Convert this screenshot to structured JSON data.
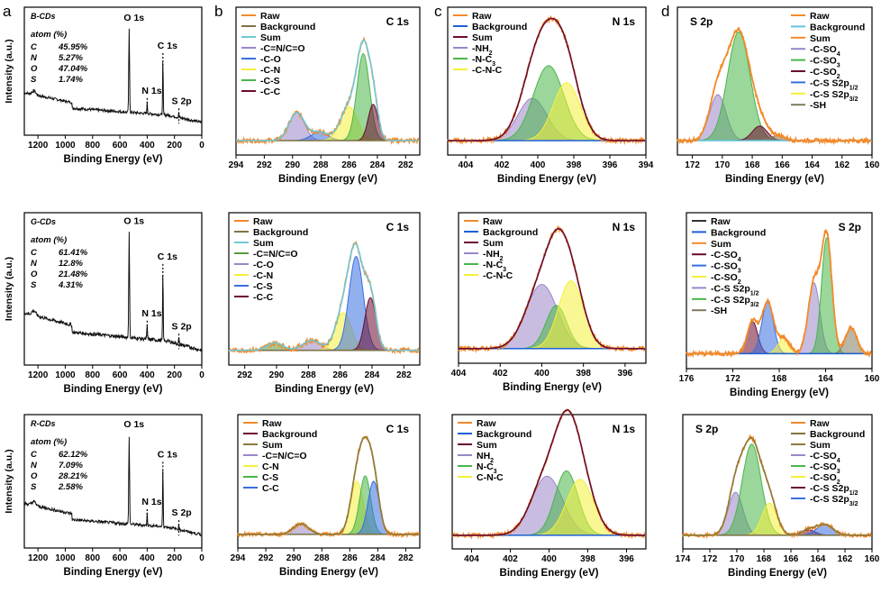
{
  "figure": {
    "row_labels": [
      "a",
      "b",
      "c",
      "d"
    ]
  },
  "colors": {
    "raw": "#f28a2c",
    "background_brown": "#7f7343",
    "background_blue": "#1f5fd6",
    "background_cyan": "#61c3d9",
    "sum_teal": "#6fc8d6",
    "sum_maroon": "#6b0b2e",
    "sum_orange": "#f28a2c",
    "sum_olive": "#8a7b3a",
    "purple": "#9a86c9",
    "blue": "#3a6fe0",
    "yellow": "#f4f03a",
    "green": "#49b549",
    "maroon": "#6b0b2e",
    "dgreen": "#5a9a3a",
    "grey": "#7f7b5e"
  },
  "chart_data": [
    {
      "id": "survey_B",
      "type": "line",
      "title": "B-CDs",
      "xlabel": "Binding Energy (eV)",
      "ylabel": "Intensity (a.u.)",
      "xlim": [
        1300,
        0
      ],
      "xticks": [
        1200,
        1000,
        800,
        600,
        400,
        200,
        0
      ],
      "composition_title": "atom (%)",
      "composition": [
        {
          "el": "C",
          "val": "45.95%"
        },
        {
          "el": "N",
          "val": "5.27%"
        },
        {
          "el": "O",
          "val": "47.04%"
        },
        {
          "el": "S",
          "val": "1.74%"
        }
      ],
      "peak_labels": [
        {
          "text": "O 1s",
          "x": 532
        },
        {
          "text": "N 1s",
          "x": 400
        },
        {
          "text": "C 1s",
          "x": 285
        },
        {
          "text": "S 2p",
          "x": 168
        }
      ]
    },
    {
      "id": "C1s_B",
      "type": "line",
      "title": "C 1s",
      "xlabel": "Binding Energy (eV)",
      "xlim": [
        294,
        281
      ],
      "xticks": [
        294,
        292,
        290,
        288,
        286,
        284,
        282
      ],
      "legend": [
        "Raw",
        "Background",
        "Sum",
        "-C=N/C=O",
        "-C-O",
        "-C-N",
        "-C-S",
        "-C-C"
      ]
    },
    {
      "id": "N1s_B",
      "type": "line",
      "title": "N 1s",
      "xlabel": "Binding Energy (eV)",
      "xlim": [
        405,
        394
      ],
      "xticks": [
        404,
        402,
        400,
        398,
        396,
        394
      ],
      "legend": [
        "Raw",
        "Background",
        "Sum",
        "-NH2",
        "-N-C3",
        "-C-N-C"
      ]
    },
    {
      "id": "S2p_B",
      "type": "line",
      "title": "S 2p",
      "xlabel": "Binding Energy (eV)",
      "xlim": [
        173,
        160
      ],
      "xticks": [
        172,
        170,
        168,
        166,
        164,
        162,
        160
      ],
      "legend": [
        "Raw",
        "Background",
        "Sum",
        "-C-SO4",
        "-C-SO3",
        "-C-SO2",
        "-C-S S2p1/2",
        "-C-S S2p3/2",
        "-SH"
      ]
    },
    {
      "id": "survey_G",
      "type": "line",
      "title": "G-CDs",
      "xlabel": "Binding Energy (eV)",
      "ylabel": "Intensity (a.u.)",
      "xlim": [
        1300,
        0
      ],
      "xticks": [
        1200,
        1000,
        800,
        600,
        400,
        200,
        0
      ],
      "composition_title": "atom (%)",
      "composition": [
        {
          "el": "C",
          "val": "61.41%"
        },
        {
          "el": "N",
          "val": "12.8%"
        },
        {
          "el": "O",
          "val": "21.48%"
        },
        {
          "el": "S",
          "val": "4.31%"
        }
      ],
      "peak_labels": [
        {
          "text": "O 1s",
          "x": 532
        },
        {
          "text": "N 1s",
          "x": 400
        },
        {
          "text": "C 1s",
          "x": 285
        },
        {
          "text": "S 2p",
          "x": 168
        }
      ]
    },
    {
      "id": "C1s_G",
      "type": "line",
      "title": "C 1s",
      "xlabel": "Binding Energy (eV)",
      "xlim": [
        293,
        281
      ],
      "xticks": [
        292,
        290,
        288,
        286,
        284,
        282
      ],
      "legend": [
        "Raw",
        "Background",
        "Sum",
        "-C=N/C=O",
        "-C-O",
        "-C-N",
        "-C-S",
        "-C-C"
      ]
    },
    {
      "id": "N1s_G",
      "type": "line",
      "title": "N 1s",
      "xlabel": "Binding Energy (eV)",
      "xlim": [
        404,
        395
      ],
      "xticks": [
        404,
        402,
        400,
        398,
        396
      ],
      "legend": [
        "Raw",
        "Background",
        "Sum",
        "-NH2",
        "-N-C3",
        "-C-N-C"
      ]
    },
    {
      "id": "S2p_G",
      "type": "line",
      "title": "S 2p",
      "xlabel": "Binding Energy (eV)",
      "xlim": [
        176,
        160
      ],
      "xticks": [
        176,
        172,
        168,
        164,
        160
      ],
      "legend": [
        "Raw",
        "Background",
        "Sum",
        "-C-SO4",
        "-C-SO3",
        "-C-SO2",
        "-C-S S2p1/2",
        "-C-S S2p3/2",
        "-SH"
      ]
    },
    {
      "id": "survey_R",
      "type": "line",
      "title": "R-CDs",
      "xlabel": "Binding Energy (eV)",
      "ylabel": "Intensity (a.u.)",
      "xlim": [
        1300,
        0
      ],
      "xticks": [
        1200,
        1000,
        800,
        600,
        400,
        200,
        0
      ],
      "composition_title": "atom (%)",
      "composition": [
        {
          "el": "C",
          "val": "62.12%"
        },
        {
          "el": "N",
          "val": "7.09%"
        },
        {
          "el": "O",
          "val": "28.21%"
        },
        {
          "el": "S",
          "val": "2.58%"
        }
      ],
      "peak_labels": [
        {
          "text": "O 1s",
          "x": 532
        },
        {
          "text": "N 1s",
          "x": 400
        },
        {
          "text": "C 1s",
          "x": 285
        },
        {
          "text": "S 2p",
          "x": 168
        }
      ]
    },
    {
      "id": "C1s_R",
      "type": "line",
      "title": "C 1s",
      "xlabel": "Binding Energy (eV)",
      "xlim": [
        294,
        281
      ],
      "xticks": [
        294,
        292,
        290,
        288,
        286,
        284,
        282
      ],
      "legend": [
        "Raw",
        "Background",
        "Sum",
        "-C=N/C=O",
        "C-N",
        "C-S",
        "C-C"
      ]
    },
    {
      "id": "N1s_R",
      "type": "line",
      "title": "N 1s",
      "xlabel": "Binding Energy (eV)",
      "xlim": [
        405,
        395
      ],
      "xticks": [
        404,
        402,
        400,
        398,
        396
      ],
      "legend": [
        "Raw",
        "Background",
        "Sum",
        "NH2",
        "N-C3",
        "C-N-C"
      ]
    },
    {
      "id": "S2p_R",
      "type": "line",
      "title": "S 2p",
      "xlabel": "Binding Energy (eV)",
      "xlim": [
        174,
        160
      ],
      "xticks": [
        174,
        172,
        170,
        168,
        166,
        164,
        162,
        160
      ],
      "legend": [
        "Raw",
        "Background",
        "Sum",
        "-C-SO4",
        "-C-SO3",
        "-C-SO2",
        "-C-S S2p1/2",
        "-C-S S2p3/2"
      ]
    }
  ]
}
